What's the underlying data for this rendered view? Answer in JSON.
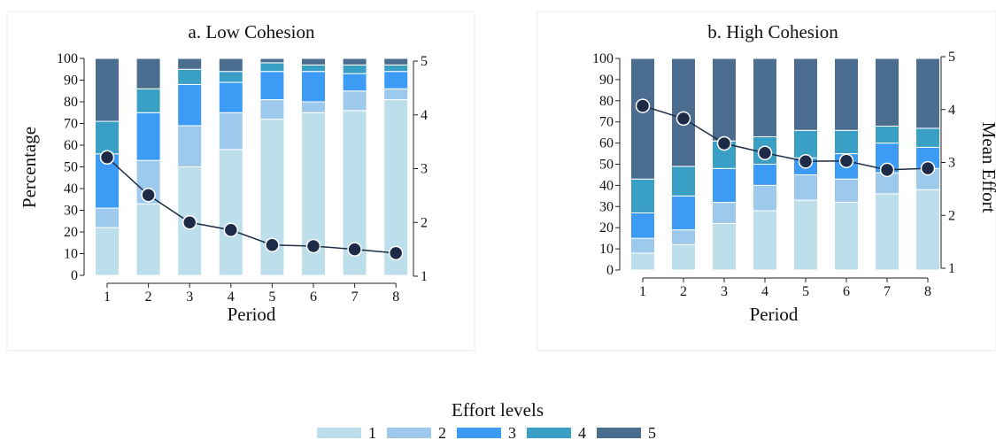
{
  "colors": {
    "level_1": "#bddfec",
    "level_2": "#9dcaec",
    "level_3": "#3c9bf5",
    "level_4": "#3a9fc5",
    "level_5": "#4a6d90",
    "line": "#1f2d46",
    "marker": "#1d2b48"
  },
  "legend": {
    "title": "Effort levels",
    "items": [
      "1",
      "2",
      "3",
      "4",
      "5"
    ]
  },
  "chart_data": [
    {
      "type": "bar",
      "stacked": true,
      "title": "a. Low Cohesion",
      "xlabel": "Period",
      "ylabel": "Percentage",
      "y2label": "",
      "categories": [
        "1",
        "2",
        "3",
        "4",
        "5",
        "6",
        "7",
        "8"
      ],
      "ylim": [
        0,
        100
      ],
      "yticks": [
        "0",
        "10",
        "20",
        "30",
        "40",
        "50",
        "60",
        "70",
        "80",
        "90",
        "100"
      ],
      "y2lim": [
        1,
        5
      ],
      "y2ticks": [
        "1",
        "2",
        "3",
        "4",
        "5"
      ],
      "series": [
        {
          "name": "1",
          "values": [
            22,
            33,
            50,
            58,
            72,
            75,
            76,
            81
          ]
        },
        {
          "name": "2",
          "values": [
            9,
            20,
            19,
            17,
            9,
            5,
            9,
            5
          ]
        },
        {
          "name": "3",
          "values": [
            25,
            22,
            19,
            14,
            13,
            14,
            8,
            8
          ]
        },
        {
          "name": "4",
          "values": [
            15,
            11,
            7,
            5,
            4,
            3,
            4,
            3
          ]
        },
        {
          "name": "5",
          "values": [
            29,
            14,
            5,
            6,
            2,
            3,
            3,
            3
          ]
        }
      ],
      "line": {
        "name": "Mean Effort",
        "values": [
          3.21,
          2.51,
          2.0,
          1.86,
          1.58,
          1.56,
          1.5,
          1.43
        ]
      }
    },
    {
      "type": "bar",
      "stacked": true,
      "title": "b. High Cohesion",
      "xlabel": "Period",
      "ylabel": "",
      "y2label": "Mean Effort",
      "categories": [
        "1",
        "2",
        "3",
        "4",
        "5",
        "6",
        "7",
        "8"
      ],
      "ylim": [
        0,
        100
      ],
      "yticks": [
        "0",
        "10",
        "20",
        "30",
        "40",
        "50",
        "60",
        "70",
        "80",
        "90",
        "100"
      ],
      "y2lim": [
        1,
        5
      ],
      "y2ticks": [
        "1",
        "2",
        "3",
        "4",
        "5"
      ],
      "series": [
        {
          "name": "1",
          "values": [
            8,
            12,
            22,
            28,
            33,
            32,
            36,
            38
          ]
        },
        {
          "name": "2",
          "values": [
            7,
            7,
            10,
            12,
            12,
            11,
            10,
            10
          ]
        },
        {
          "name": "3",
          "values": [
            12,
            16,
            16,
            10,
            8,
            12,
            14,
            10
          ]
        },
        {
          "name": "4",
          "values": [
            16,
            14,
            13,
            13,
            13,
            11,
            8,
            9
          ]
        },
        {
          "name": "5",
          "values": [
            57,
            51,
            39,
            37,
            34,
            34,
            32,
            33
          ]
        }
      ],
      "line": {
        "name": "Mean Effort",
        "values": [
          4.07,
          3.83,
          3.36,
          3.18,
          3.02,
          3.03,
          2.86,
          2.89
        ]
      }
    }
  ]
}
